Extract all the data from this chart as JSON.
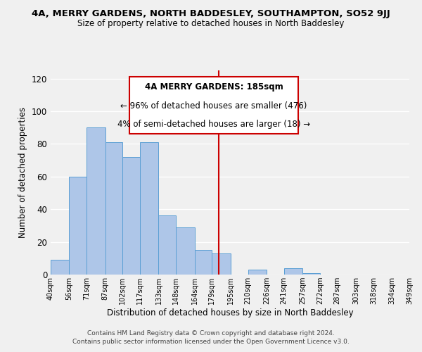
{
  "title1": "4A, MERRY GARDENS, NORTH BADDESLEY, SOUTHAMPTON, SO52 9JJ",
  "title2": "Size of property relative to detached houses in North Baddesley",
  "xlabel": "Distribution of detached houses by size in North Baddesley",
  "ylabel": "Number of detached properties",
  "bar_edges": [
    40,
    56,
    71,
    87,
    102,
    117,
    133,
    148,
    164,
    179,
    195,
    210,
    226,
    241,
    257,
    272,
    287,
    303,
    318,
    334,
    349
  ],
  "bar_heights": [
    9,
    60,
    90,
    81,
    72,
    81,
    36,
    29,
    15,
    13,
    0,
    3,
    0,
    4,
    1,
    0,
    0,
    0,
    0,
    0
  ],
  "bar_color": "#aec6e8",
  "bar_edge_color": "#5a9fd4",
  "vline_x": 185,
  "vline_color": "#cc0000",
  "ylim": [
    0,
    125
  ],
  "yticks": [
    0,
    20,
    40,
    60,
    80,
    100,
    120
  ],
  "annotation_title": "4A MERRY GARDENS: 185sqm",
  "annotation_line1": "← 96% of detached houses are smaller (476)",
  "annotation_line2": "4% of semi-detached houses are larger (18) →",
  "footer1": "Contains HM Land Registry data © Crown copyright and database right 2024.",
  "footer2": "Contains public sector information licensed under the Open Government Licence v3.0.",
  "tick_labels": [
    "40sqm",
    "56sqm",
    "71sqm",
    "87sqm",
    "102sqm",
    "117sqm",
    "133sqm",
    "148sqm",
    "164sqm",
    "179sqm",
    "195sqm",
    "210sqm",
    "226sqm",
    "241sqm",
    "257sqm",
    "272sqm",
    "287sqm",
    "303sqm",
    "318sqm",
    "334sqm",
    "349sqm"
  ],
  "background_color": "#f0f0f0",
  "grid_color": "#ffffff"
}
